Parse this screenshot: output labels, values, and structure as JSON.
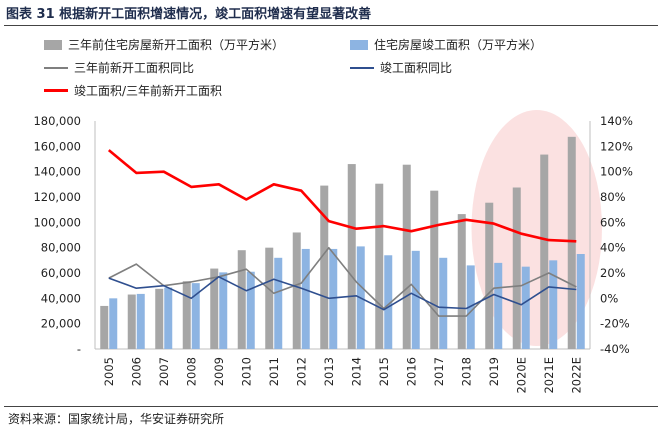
{
  "header": {
    "title": "图表 31  根据新开工面积增速情况，竣工面积增速有望显著改善"
  },
  "footer": {
    "source": "资料来源：国家统计局，华安证券研究所"
  },
  "colors": {
    "bar_new_starts": "#a6a6a6",
    "bar_completed": "#8db4e2",
    "line_new_starts_yoy": "#7f7f7f",
    "line_completed_yoy": "#2f4f8f",
    "line_ratio": "#ff0000",
    "highlight": "#f8c8c8"
  },
  "legend": [
    {
      "label": "三年前住宅房屋新开工面积（万平方米）",
      "kind": "bar",
      "color": "#a6a6a6"
    },
    {
      "label": "住宅房屋竣工面积（万平方米）",
      "kind": "bar",
      "color": "#8db4e2"
    },
    {
      "label": "三年前新开工面积同比",
      "kind": "line",
      "color": "#7f7f7f"
    },
    {
      "label": "竣工面积同比",
      "kind": "line",
      "color": "#2f4f8f"
    },
    {
      "label": "竣工面积/三年前新开工面积",
      "kind": "line",
      "color": "#ff0000"
    }
  ],
  "chart_data": {
    "type": "bar",
    "title": "根据新开工面积增速情况，竣工面积增速有望显著改善",
    "categories": [
      "2005",
      "2006",
      "2007",
      "2008",
      "2009",
      "2010",
      "2011",
      "2012",
      "2013",
      "2014",
      "2015",
      "2016",
      "2017",
      "2018",
      "2019",
      "2020E",
      "2021E",
      "2022E"
    ],
    "series": [
      {
        "name": "三年前住宅房屋新开工面积（万平方米）",
        "type": "bar",
        "axis": "left",
        "values": [
          34000,
          43000,
          47500,
          53500,
          63500,
          78000,
          80000,
          92000,
          129000,
          146000,
          130500,
          145500,
          125000,
          106500,
          115500,
          127500,
          153500,
          167500
        ]
      },
      {
        "name": "住宅房屋竣工面积（万平方米）",
        "type": "bar",
        "axis": "left",
        "values": [
          40000,
          43500,
          48500,
          52000,
          60500,
          61000,
          72000,
          79000,
          79000,
          81000,
          74000,
          77500,
          72000,
          66000,
          68000,
          65000,
          70000,
          75000
        ]
      },
      {
        "name": "三年前新开工面积同比",
        "type": "line",
        "axis": "right",
        "values": [
          16,
          27,
          10,
          13,
          17,
          23,
          4,
          12,
          40,
          13,
          -8,
          11,
          -14,
          -14,
          8,
          10,
          20,
          9
        ]
      },
      {
        "name": "竣工面积同比",
        "type": "line",
        "axis": "right",
        "values": [
          16,
          8,
          10,
          0,
          17,
          6,
          15,
          8,
          0,
          2,
          -9,
          4,
          -7,
          -8,
          3,
          -5,
          9,
          7
        ]
      },
      {
        "name": "竣工面积/三年前新开工面积",
        "type": "line",
        "axis": "right",
        "values": [
          117,
          99,
          100,
          88,
          90,
          78,
          90,
          85,
          61,
          55,
          57,
          53,
          58,
          62,
          59,
          51,
          46,
          45
        ]
      }
    ],
    "y_left": {
      "min": 0,
      "max": 180000,
      "step": 20000,
      "tick_labels": [
        "-",
        "20,000",
        "40,000",
        "60,000",
        "80,000",
        "100,000",
        "120,000",
        "140,000",
        "160,000",
        "180,000"
      ]
    },
    "y_right": {
      "min": -40,
      "max": 140,
      "step": 20,
      "tick_labels": [
        "-40%",
        "-20%",
        "0%",
        "20%",
        "40%",
        "60%",
        "80%",
        "100%",
        "120%",
        "140%"
      ]
    },
    "highlight_region": {
      "from": "2020E",
      "to": "2022E",
      "shape": "ellipse"
    },
    "grid": false,
    "legend_position": "top"
  }
}
